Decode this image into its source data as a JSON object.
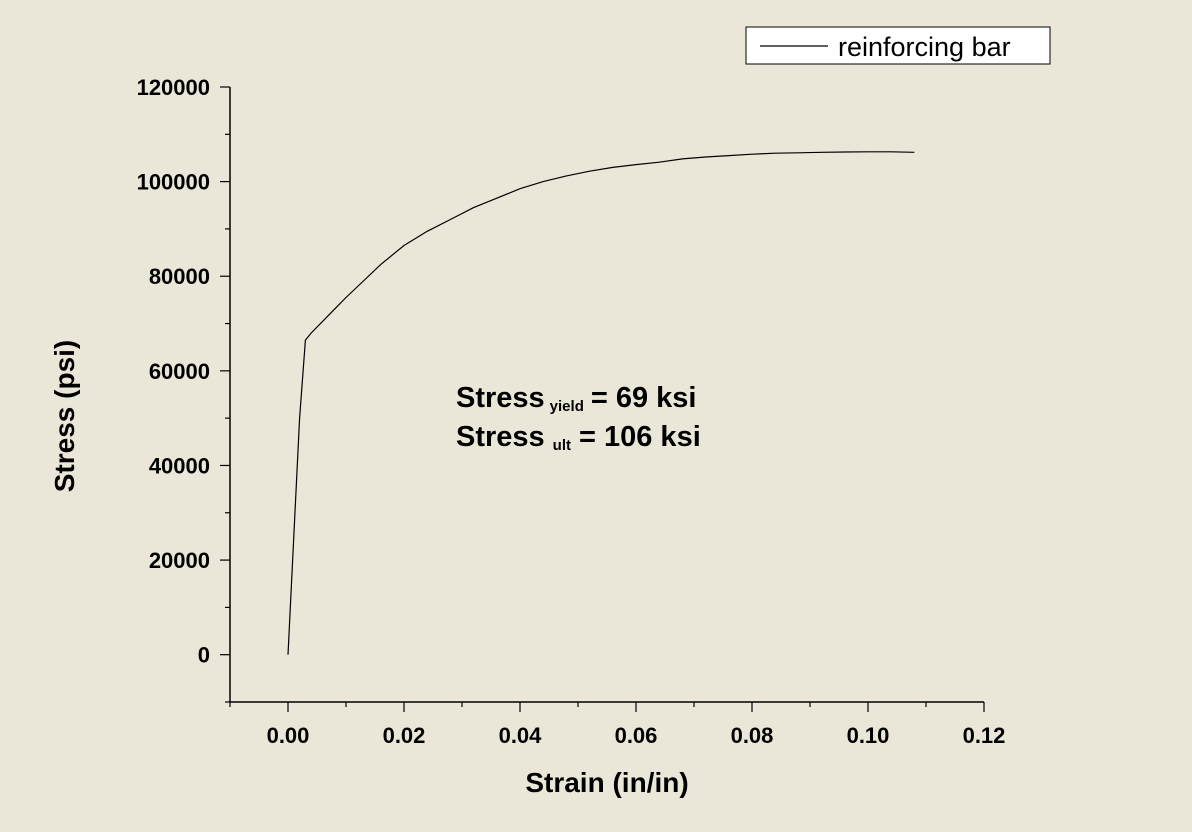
{
  "chart_data": {
    "type": "line",
    "xlabel": "Strain (in/in)",
    "ylabel": "Stress (psi)",
    "xlim": [
      -0.01,
      0.12
    ],
    "ylim": [
      -10000,
      120000
    ],
    "x_ticks": [
      0.0,
      0.02,
      0.04,
      0.06,
      0.08,
      0.1,
      0.12
    ],
    "x_tick_labels": [
      "0.00",
      "0.02",
      "0.04",
      "0.06",
      "0.08",
      "0.10",
      "0.12"
    ],
    "y_ticks": [
      0,
      20000,
      40000,
      60000,
      80000,
      100000,
      120000
    ],
    "y_tick_labels": [
      "0",
      "20000",
      "40000",
      "60000",
      "80000",
      "100000",
      "120000"
    ],
    "grid": false,
    "legend_position": "top-right",
    "series": [
      {
        "name": "reinforcing bar",
        "color": "#000000",
        "x": [
          0.0,
          0.001,
          0.002,
          0.003,
          0.004,
          0.006,
          0.008,
          0.01,
          0.013,
          0.016,
          0.02,
          0.024,
          0.028,
          0.032,
          0.036,
          0.04,
          0.044,
          0.048,
          0.052,
          0.056,
          0.06,
          0.064,
          0.068,
          0.072,
          0.076,
          0.08,
          0.084,
          0.088,
          0.092,
          0.096,
          0.1,
          0.104,
          0.108
        ],
        "y": [
          0,
          25000,
          50000,
          66500,
          68000,
          70500,
          73000,
          75500,
          79000,
          82500,
          86500,
          89500,
          92000,
          94500,
          96500,
          98500,
          100000,
          101200,
          102200,
          103000,
          103600,
          104100,
          104800,
          105200,
          105500,
          105800,
          106000,
          106100,
          106200,
          106250,
          106300,
          106300,
          106200
        ]
      }
    ]
  },
  "annotations": {
    "line1_main": "Stress",
    "line1_sub": "yield",
    "line1_value": "= 69 ksi",
    "line2_main": "Stress",
    "line2_sub": "ult",
    "line2_value": "= 106 ksi"
  }
}
